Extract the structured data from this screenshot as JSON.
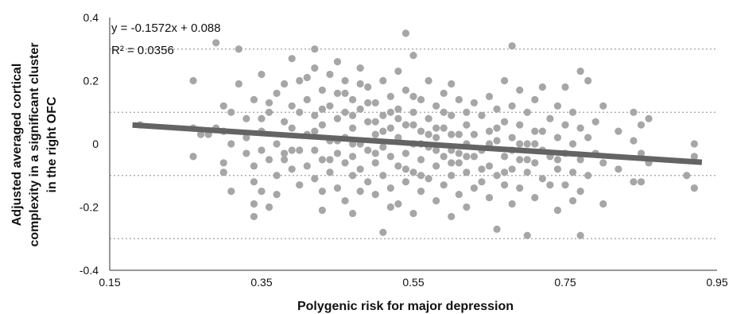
{
  "chart_data": {
    "type": "scatter",
    "xlabel": "Polygenic risk for major depression",
    "ylabel_lines": [
      "Adjusted averaged cortical",
      "complexity in a significant cluster",
      "in the right OFC"
    ],
    "xlim": [
      0.15,
      0.95
    ],
    "ylim": [
      -0.4,
      0.4
    ],
    "x_ticks": [
      0.15,
      0.35,
      0.55,
      0.75,
      0.95
    ],
    "x_tick_labels": [
      "0.15",
      "0.35",
      "0.55",
      "0.75",
      "0.95"
    ],
    "y_ticks": [
      0.4,
      0.2,
      0,
      -0.2,
      -0.4
    ],
    "y_tick_labels": [
      "0.4",
      "0.2",
      "0",
      "-0.2",
      "-0.4"
    ],
    "gridlines_y": [
      0.3,
      0.1,
      -0.1,
      -0.3
    ],
    "trendline": {
      "slope": -0.1572,
      "intercept": 0.088,
      "x_range": [
        0.18,
        0.93
      ]
    },
    "equation_text": "y = -0.1572x + 0.088",
    "r2_text": "R² = 0.0356",
    "colors": {
      "points": "#a6a6a6",
      "trendline": "#646464",
      "grid": "#a0a0a0",
      "axis": "#333333"
    },
    "points": [
      [
        0.19,
        0.06
      ],
      [
        0.26,
        0.2
      ],
      [
        0.26,
        0.05
      ],
      [
        0.26,
        -0.04
      ],
      [
        0.27,
        0.03
      ],
      [
        0.28,
        0.03
      ],
      [
        0.29,
        0.32
      ],
      [
        0.3,
        0.12
      ],
      [
        0.3,
        0.04
      ],
      [
        0.3,
        -0.06
      ],
      [
        0.3,
        -0.09
      ],
      [
        0.31,
        0.1
      ],
      [
        0.31,
        0.0
      ],
      [
        0.32,
        0.19
      ],
      [
        0.32,
        0.3
      ],
      [
        0.33,
        0.08
      ],
      [
        0.33,
        -0.03
      ],
      [
        0.34,
        0.14
      ],
      [
        0.34,
        -0.07
      ],
      [
        0.34,
        -0.12
      ],
      [
        0.34,
        -0.19
      ],
      [
        0.34,
        -0.23
      ],
      [
        0.35,
        0.22
      ],
      [
        0.35,
        0.04
      ],
      [
        0.35,
        -0.02
      ],
      [
        0.35,
        -0.15
      ],
      [
        0.36,
        0.1
      ],
      [
        0.36,
        -0.05
      ],
      [
        0.36,
        -0.2
      ],
      [
        0.37,
        0.16
      ],
      [
        0.37,
        0.0
      ],
      [
        0.37,
        -0.1
      ],
      [
        0.38,
        0.19
      ],
      [
        0.38,
        0.07
      ],
      [
        0.38,
        -0.03
      ],
      [
        0.39,
        0.27
      ],
      [
        0.39,
        0.12
      ],
      [
        0.39,
        0.05
      ],
      [
        0.39,
        -0.08
      ],
      [
        0.4,
        0.2
      ],
      [
        0.4,
        -0.02
      ],
      [
        0.4,
        -0.13
      ],
      [
        0.41,
        0.14
      ],
      [
        0.41,
        0.03
      ],
      [
        0.41,
        -0.07
      ],
      [
        0.42,
        0.3
      ],
      [
        0.42,
        0.24
      ],
      [
        0.42,
        0.09
      ],
      [
        0.42,
        -0.02
      ],
      [
        0.42,
        -0.11
      ],
      [
        0.43,
        0.17
      ],
      [
        0.43,
        0.06
      ],
      [
        0.43,
        -0.05
      ],
      [
        0.43,
        -0.21
      ],
      [
        0.44,
        0.22
      ],
      [
        0.44,
        0.12
      ],
      [
        0.44,
        0.01
      ],
      [
        0.44,
        -0.09
      ],
      [
        0.45,
        0.26
      ],
      [
        0.45,
        0.16
      ],
      [
        0.45,
        0.08
      ],
      [
        0.45,
        -0.03
      ],
      [
        0.45,
        -0.14
      ],
      [
        0.46,
        0.2
      ],
      [
        0.46,
        0.1
      ],
      [
        0.46,
        0.02
      ],
      [
        0.46,
        -0.06
      ],
      [
        0.46,
        -0.18
      ],
      [
        0.47,
        0.14
      ],
      [
        0.47,
        0.05
      ],
      [
        0.47,
        -0.04
      ],
      [
        0.47,
        -0.1
      ],
      [
        0.47,
        -0.22
      ],
      [
        0.48,
        0.24
      ],
      [
        0.48,
        0.11
      ],
      [
        0.48,
        0.0
      ],
      [
        0.48,
        -0.08
      ],
      [
        0.49,
        0.18
      ],
      [
        0.49,
        0.07
      ],
      [
        0.49,
        -0.02
      ],
      [
        0.49,
        -0.12
      ],
      [
        0.5,
        0.13
      ],
      [
        0.5,
        0.03
      ],
      [
        0.5,
        -0.06
      ],
      [
        0.5,
        -0.16
      ],
      [
        0.51,
        0.2
      ],
      [
        0.51,
        0.09
      ],
      [
        0.51,
        -0.01
      ],
      [
        0.51,
        -0.1
      ],
      [
        0.51,
        -0.28
      ],
      [
        0.52,
        0.15
      ],
      [
        0.52,
        0.05
      ],
      [
        0.52,
        -0.04
      ],
      [
        0.52,
        -0.14
      ],
      [
        0.53,
        0.23
      ],
      [
        0.53,
        0.11
      ],
      [
        0.53,
        0.02
      ],
      [
        0.53,
        -0.07
      ],
      [
        0.53,
        -0.19
      ],
      [
        0.54,
        0.35
      ],
      [
        0.54,
        0.17
      ],
      [
        0.54,
        0.06
      ],
      [
        0.54,
        -0.03
      ],
      [
        0.54,
        -0.12
      ],
      [
        0.55,
        0.28
      ],
      [
        0.55,
        0.1
      ],
      [
        0.55,
        0.0
      ],
      [
        0.55,
        -0.09
      ],
      [
        0.55,
        -0.22
      ],
      [
        0.56,
        0.14
      ],
      [
        0.56,
        0.04
      ],
      [
        0.56,
        -0.05
      ],
      [
        0.56,
        -0.15
      ],
      [
        0.57,
        0.2
      ],
      [
        0.57,
        0.08
      ],
      [
        0.57,
        -0.01
      ],
      [
        0.57,
        -0.11
      ],
      [
        0.58,
        0.12
      ],
      [
        0.58,
        0.02
      ],
      [
        0.58,
        -0.07
      ],
      [
        0.58,
        -0.18
      ],
      [
        0.59,
        0.16
      ],
      [
        0.59,
        0.05
      ],
      [
        0.59,
        -0.04
      ],
      [
        0.59,
        -0.13
      ],
      [
        0.6,
        0.19
      ],
      [
        0.6,
        0.09
      ],
      [
        0.6,
        -0.02
      ],
      [
        0.6,
        -0.1
      ],
      [
        0.6,
        -0.23
      ],
      [
        0.61,
        0.14
      ],
      [
        0.61,
        0.03
      ],
      [
        0.61,
        -0.06
      ],
      [
        0.61,
        -0.16
      ],
      [
        0.62,
        0.1
      ],
      [
        0.62,
        0.0
      ],
      [
        0.62,
        -0.09
      ],
      [
        0.62,
        -0.2
      ],
      [
        0.63,
        0.13
      ],
      [
        0.63,
        -0.04
      ],
      [
        0.63,
        -0.14
      ],
      [
        0.64,
        0.09
      ],
      [
        0.64,
        -0.02
      ],
      [
        0.64,
        -0.12
      ],
      [
        0.65,
        0.15
      ],
      [
        0.65,
        0.04
      ],
      [
        0.65,
        -0.07
      ],
      [
        0.65,
        -0.17
      ],
      [
        0.66,
        0.11
      ],
      [
        0.66,
        0.01
      ],
      [
        0.66,
        -0.1
      ],
      [
        0.66,
        -0.27
      ],
      [
        0.67,
        0.2
      ],
      [
        0.67,
        0.07
      ],
      [
        0.67,
        -0.04
      ],
      [
        0.67,
        -0.13
      ],
      [
        0.68,
        0.31
      ],
      [
        0.68,
        0.12
      ],
      [
        0.68,
        0.02
      ],
      [
        0.68,
        -0.08
      ],
      [
        0.68,
        -0.19
      ],
      [
        0.69,
        0.17
      ],
      [
        0.69,
        0.06
      ],
      [
        0.69,
        -0.05
      ],
      [
        0.69,
        -0.14
      ],
      [
        0.7,
        0.1
      ],
      [
        0.7,
        0.0
      ],
      [
        0.7,
        -0.09
      ],
      [
        0.7,
        -0.29
      ],
      [
        0.71,
        0.14
      ],
      [
        0.71,
        0.04
      ],
      [
        0.71,
        -0.06
      ],
      [
        0.71,
        -0.17
      ],
      [
        0.72,
        0.18
      ],
      [
        0.72,
        -0.02
      ],
      [
        0.72,
        -0.11
      ],
      [
        0.73,
        0.08
      ],
      [
        0.73,
        -0.04
      ],
      [
        0.74,
        0.12
      ],
      [
        0.74,
        0.02
      ],
      [
        0.74,
        -0.08
      ],
      [
        0.74,
        -0.21
      ],
      [
        0.75,
        0.18
      ],
      [
        0.75,
        0.06
      ],
      [
        0.75,
        -0.03
      ],
      [
        0.75,
        -0.13
      ],
      [
        0.76,
        0.1
      ],
      [
        0.76,
        0.0
      ],
      [
        0.76,
        -0.09
      ],
      [
        0.76,
        -0.18
      ],
      [
        0.77,
        0.23
      ],
      [
        0.77,
        0.05
      ],
      [
        0.77,
        -0.05
      ],
      [
        0.77,
        -0.15
      ],
      [
        0.77,
        -0.29
      ],
      [
        0.78,
        0.2
      ],
      [
        0.78,
        0.02
      ],
      [
        0.78,
        -0.1
      ],
      [
        0.79,
        0.07
      ],
      [
        0.79,
        -0.03
      ],
      [
        0.8,
        0.12
      ],
      [
        0.8,
        -0.06
      ],
      [
        0.8,
        -0.19
      ],
      [
        0.82,
        0.04
      ],
      [
        0.82,
        -0.08
      ],
      [
        0.84,
        0.1
      ],
      [
        0.84,
        0.01
      ],
      [
        0.84,
        -0.12
      ],
      [
        0.85,
        0.06
      ],
      [
        0.85,
        -0.03
      ],
      [
        0.85,
        -0.12
      ],
      [
        0.86,
        0.08
      ],
      [
        0.86,
        -0.06
      ],
      [
        0.91,
        -0.1
      ],
      [
        0.92,
        0.0
      ],
      [
        0.92,
        -0.04
      ],
      [
        0.92,
        -0.14
      ],
      [
        0.29,
        0.05
      ],
      [
        0.31,
        -0.15
      ],
      [
        0.33,
        0.02
      ],
      [
        0.36,
        0.13
      ],
      [
        0.37,
        -0.16
      ],
      [
        0.39,
        -0.02
      ],
      [
        0.41,
        0.21
      ],
      [
        0.43,
        0.11
      ],
      [
        0.44,
        -0.05
      ],
      [
        0.46,
        0.16
      ],
      [
        0.47,
        0.0
      ],
      [
        0.48,
        -0.15
      ],
      [
        0.49,
        0.13
      ],
      [
        0.5,
        -0.03
      ],
      [
        0.51,
        0.04
      ],
      [
        0.52,
        -0.2
      ],
      [
        0.53,
        0.08
      ],
      [
        0.55,
        0.06
      ],
      [
        0.56,
        -0.1
      ],
      [
        0.57,
        0.03
      ],
      [
        0.58,
        -0.02
      ],
      [
        0.59,
        0.1
      ],
      [
        0.6,
        0.03
      ],
      [
        0.61,
        -0.03
      ],
      [
        0.62,
        0.06
      ],
      [
        0.63,
        0.03
      ],
      [
        0.64,
        -0.08
      ],
      [
        0.66,
        0.05
      ],
      [
        0.67,
        -0.09
      ],
      [
        0.69,
        0.0
      ],
      [
        0.7,
        -0.05
      ],
      [
        0.72,
        0.04
      ],
      [
        0.73,
        -0.13
      ],
      [
        0.42,
        0.04
      ],
      [
        0.45,
        0.01
      ],
      [
        0.47,
        0.09
      ],
      [
        0.5,
        0.07
      ],
      [
        0.52,
        0.1
      ],
      [
        0.54,
        -0.08
      ],
      [
        0.56,
        0.0
      ],
      [
        0.58,
        0.05
      ],
      [
        0.6,
        -0.06
      ],
      [
        0.62,
        -0.04
      ],
      [
        0.65,
        0.0
      ],
      [
        0.68,
        -0.02
      ],
      [
        0.71,
        0.0
      ],
      [
        0.74,
        -0.05
      ],
      [
        0.4,
        0.1
      ],
      [
        0.38,
        -0.05
      ],
      [
        0.35,
        0.08
      ],
      [
        0.43,
        -0.15
      ],
      [
        0.48,
        0.19
      ],
      [
        0.55,
        0.15
      ]
    ]
  }
}
